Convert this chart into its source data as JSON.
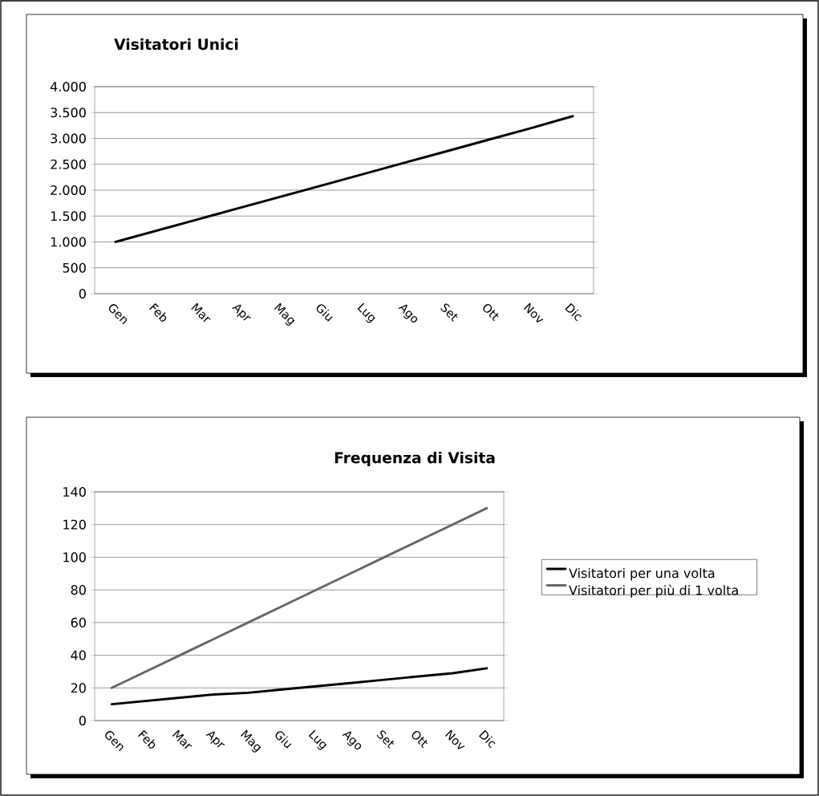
{
  "chart_data": [
    {
      "type": "line",
      "title": "Visitatori Unici",
      "categories": [
        "Gen",
        "Feb",
        "Mar",
        "Apr",
        "Mag",
        "Giu",
        "Lug",
        "Ago",
        "Set",
        "Ott",
        "Nov",
        "Dic"
      ],
      "series": [
        {
          "color": "#000000",
          "values": [
            1000,
            1220,
            1440,
            1660,
            1880,
            2100,
            2320,
            2540,
            2760,
            2980,
            3200,
            3430
          ]
        }
      ],
      "ylim": [
        0,
        4000
      ],
      "yticks": [
        0,
        {
          "value": 500,
          "label": "500"
        },
        {
          "value": 1000,
          "label": "1.000"
        },
        {
          "value": 1500,
          "label": "1.500"
        },
        {
          "value": 2000,
          "label": "2.000"
        },
        {
          "value": 2500,
          "label": "2.500"
        },
        {
          "value": 3000,
          "label": "3.000"
        },
        {
          "value": 3500,
          "label": "3.500"
        },
        {
          "value": 4000,
          "label": "4.000"
        }
      ],
      "grid": "y"
    },
    {
      "type": "line",
      "title": "Frequenza di Visita",
      "categories": [
        "Gen",
        "Feb",
        "Mar",
        "Apr",
        "Mag",
        "Giu",
        "Lug",
        "Ago",
        "Set",
        "Ott",
        "Nov",
        "Dic"
      ],
      "series": [
        {
          "name": "Visitatori per una volta",
          "color": "#000000",
          "values": [
            10,
            12,
            14,
            16,
            17,
            19,
            21,
            23,
            25,
            27,
            29,
            32
          ]
        },
        {
          "name": "Visitatori per più di 1 volta",
          "color": "#666666",
          "values": [
            20,
            30,
            40,
            50,
            60,
            70,
            80,
            90,
            100,
            110,
            120,
            130
          ]
        }
      ],
      "ylim": [
        0,
        140
      ],
      "yticks": [
        0,
        20,
        40,
        60,
        80,
        100,
        120,
        140
      ],
      "grid": "y",
      "legend": "right"
    }
  ]
}
